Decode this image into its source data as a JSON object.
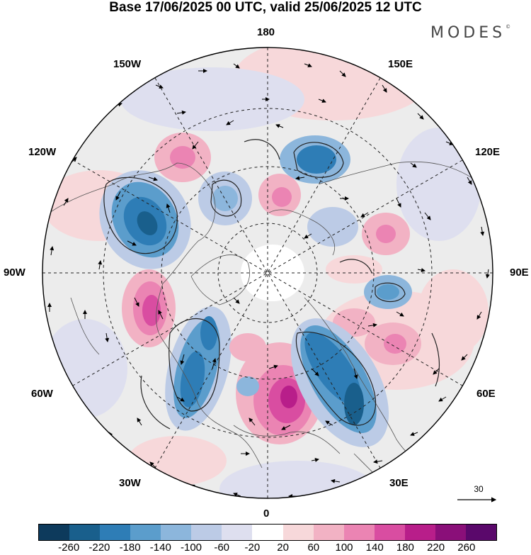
{
  "title": "Base 17/06/2025 00 UTC, valid 25/06/2025 12 UTC",
  "brand": "MODES",
  "brand_mark": "©",
  "longitude_labels": {
    "top": "180",
    "top_left": "150W",
    "top_right": "150E",
    "upper_left": "120W",
    "upper_right": "120E",
    "left": "90W",
    "right": "90E",
    "lower_left": "60W",
    "lower_right": "60E",
    "bottom_left": "30W",
    "bottom_right": "30E",
    "bottom": "0"
  },
  "reference_vector": "30",
  "colorbar": {
    "colors": [
      "#0d3a5c",
      "#195f8c",
      "#2e7db6",
      "#5b9dcc",
      "#8cb6dc",
      "#bccbe6",
      "#dedfef",
      "#ffffff",
      "#f7d8da",
      "#f2b2c4",
      "#eb84b3",
      "#d94da1",
      "#b81e8a",
      "#8a0f79",
      "#5a086b"
    ],
    "tick_labels": [
      "-260",
      "-220",
      "-180",
      "-140",
      "-100",
      "-60",
      "-20",
      "20",
      "60",
      "100",
      "140",
      "180",
      "220",
      "260"
    ]
  }
}
